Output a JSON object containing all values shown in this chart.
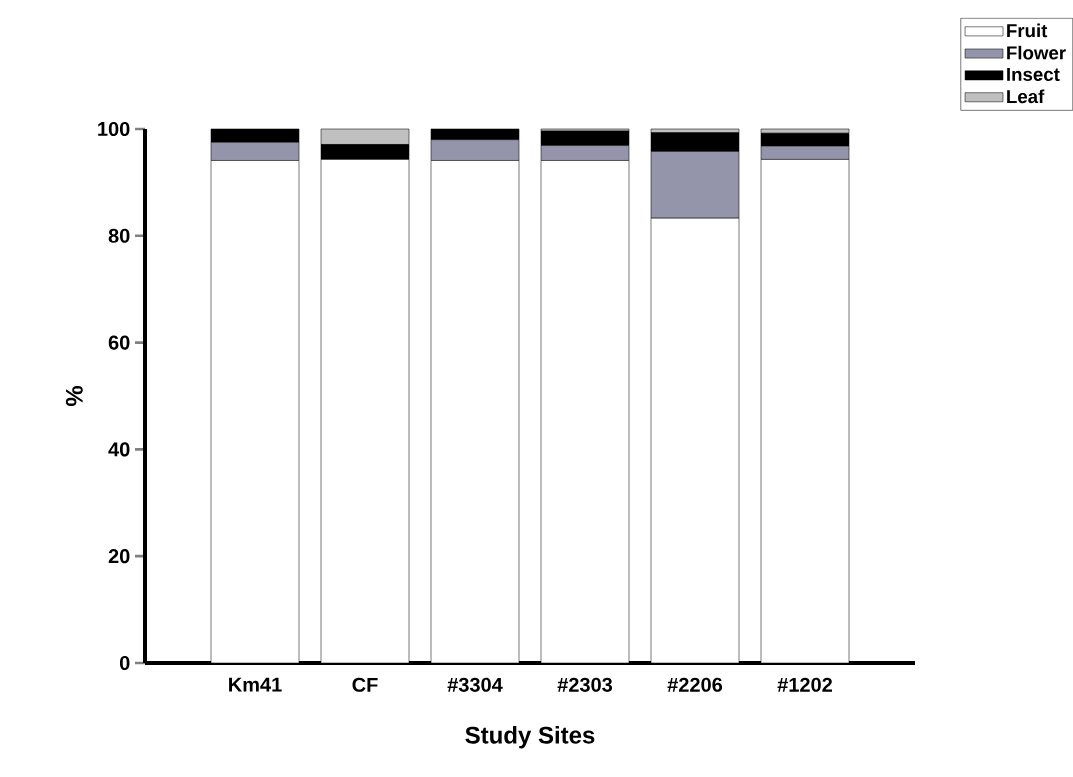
{
  "chart_data": {
    "type": "bar",
    "stacked": true,
    "xlabel": "Study Sites",
    "ylabel": "%",
    "categories": [
      "Km41",
      "CF",
      "#3304",
      "#2303",
      "#2206",
      "#1202"
    ],
    "series": [
      {
        "name": "Fruit",
        "color": "#ffffff",
        "values": [
          94.1,
          94.3,
          94.1,
          94.1,
          83.3,
          94.3
        ]
      },
      {
        "name": "Flower",
        "color": "#9494aa",
        "values": [
          3.4,
          0,
          3.9,
          2.8,
          12.5,
          2.5
        ]
      },
      {
        "name": "Insect",
        "color": "#000000",
        "values": [
          2.5,
          2.8,
          2.0,
          2.7,
          3.5,
          2.4
        ]
      },
      {
        "name": "Leaf",
        "color": "#c0c0c0",
        "values": [
          0,
          2.9,
          0,
          0.4,
          0.7,
          0.8
        ]
      }
    ],
    "ylim": [
      0,
      100
    ],
    "yticks": [
      0,
      20,
      40,
      60,
      80,
      100
    ],
    "grid": false,
    "legend": "top right"
  }
}
